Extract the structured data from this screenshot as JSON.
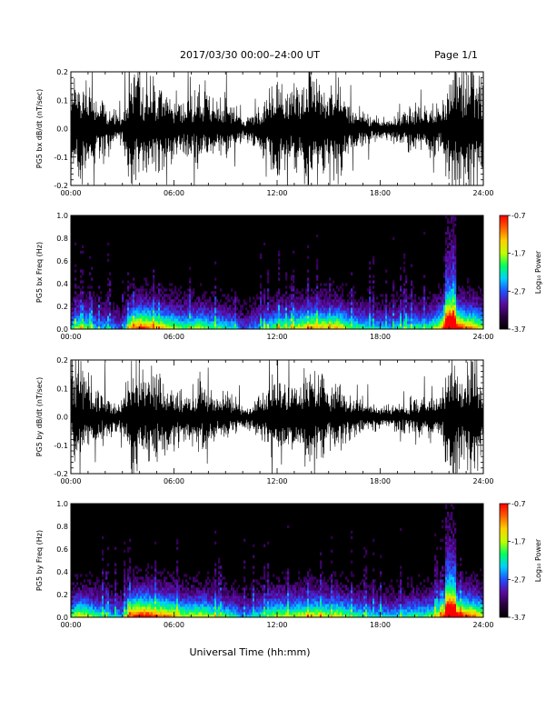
{
  "header": {
    "title": "2017/03/30  00:00–24:00 UT",
    "page": "Page 1/1"
  },
  "footer": {
    "xlabel": "Universal Time (hh:mm)"
  },
  "colors": {
    "trace": "#000000",
    "spectrogram_background": "#000000",
    "colormap": [
      "#000000",
      "#2a0040",
      "#5a0aa0",
      "#2050ff",
      "#00d0ff",
      "#00ff60",
      "#c0ff00",
      "#ffd000",
      "#ff6000",
      "#ff0000"
    ]
  },
  "chart_data": [
    {
      "id": "bx-waveform",
      "type": "line",
      "ylabel": "PG5 bx dB/dt (nT/sec)",
      "x_ticks": [
        "00:00",
        "06:00",
        "12:00",
        "18:00",
        "24:00"
      ],
      "xlim": [
        0,
        24
      ],
      "ylim": [
        -0.2,
        0.2
      ],
      "y_ticks": [
        "-0.2",
        "-0.1",
        "0.0",
        "0.1",
        "0.2"
      ],
      "y_tick_values": [
        -0.2,
        -0.1,
        0.0,
        0.1,
        0.2
      ],
      "envelope_hours": [
        0,
        0.5,
        1,
        1.5,
        2,
        2.5,
        3,
        3.5,
        4,
        4.5,
        5,
        5.5,
        6,
        6.5,
        7,
        7.5,
        8,
        8.5,
        9,
        9.5,
        10,
        10.5,
        11,
        11.5,
        12,
        12.5,
        13,
        13.5,
        14,
        14.5,
        15,
        15.5,
        16,
        16.5,
        17,
        17.5,
        18,
        18.5,
        19,
        19.5,
        20,
        20.5,
        21,
        21.5,
        22,
        22.5,
        23,
        23.5,
        24
      ],
      "envelope_amplitude": [
        0.15,
        0.2,
        0.14,
        0.1,
        0.09,
        0.06,
        0.05,
        0.2,
        0.16,
        0.18,
        0.15,
        0.14,
        0.12,
        0.1,
        0.12,
        0.13,
        0.11,
        0.09,
        0.1,
        0.08,
        0.04,
        0.05,
        0.09,
        0.12,
        0.2,
        0.12,
        0.15,
        0.17,
        0.2,
        0.18,
        0.12,
        0.2,
        0.1,
        0.08,
        0.06,
        0.05,
        0.04,
        0.04,
        0.05,
        0.06,
        0.08,
        0.07,
        0.09,
        0.08,
        0.2,
        0.2,
        0.2,
        0.2,
        0.15
      ]
    },
    {
      "id": "bx-spectrogram",
      "type": "heatmap",
      "ylabel": "PG5 bx Freq (Hz)",
      "x_ticks": [
        "00:00",
        "06:00",
        "12:00",
        "18:00",
        "24:00"
      ],
      "xlim": [
        0,
        24
      ],
      "ylim": [
        0.0,
        1.0
      ],
      "y_ticks": [
        "0.0",
        "0.2",
        "0.4",
        "0.6",
        "0.8",
        "1.0"
      ],
      "y_tick_values": [
        0.0,
        0.2,
        0.4,
        0.6,
        0.8,
        1.0
      ],
      "colorbar_label": "Log₁₀ Power",
      "colorbar_ticks": [
        "-0.7",
        "-1.7",
        "-2.7",
        "-3.7"
      ],
      "colorbar_values": [
        -0.7,
        -1.7,
        -2.7,
        -3.7
      ],
      "color_range": [
        -3.7,
        -0.7
      ],
      "activity_hours": [
        0,
        0.5,
        1,
        1.5,
        2,
        2.5,
        3,
        3.5,
        4,
        4.5,
        5,
        5.5,
        6,
        6.5,
        7,
        7.5,
        8,
        8.5,
        9,
        9.5,
        10,
        10.5,
        11,
        11.5,
        12,
        12.5,
        13,
        13.5,
        14,
        14.5,
        15,
        15.5,
        16,
        16.5,
        17,
        17.5,
        18,
        18.5,
        19,
        19.5,
        20,
        20.5,
        21,
        21.5,
        22,
        22.5,
        23,
        23.5,
        24
      ],
      "activity_level": [
        0.35,
        0.45,
        0.4,
        0.3,
        0.3,
        0.25,
        0.2,
        0.55,
        0.65,
        0.6,
        0.55,
        0.5,
        0.45,
        0.4,
        0.42,
        0.45,
        0.4,
        0.38,
        0.35,
        0.32,
        0.2,
        0.25,
        0.3,
        0.35,
        0.45,
        0.42,
        0.45,
        0.5,
        0.55,
        0.55,
        0.5,
        0.55,
        0.45,
        0.38,
        0.35,
        0.32,
        0.3,
        0.3,
        0.32,
        0.35,
        0.38,
        0.35,
        0.4,
        0.5,
        0.85,
        0.7,
        0.6,
        0.55,
        0.45
      ]
    },
    {
      "id": "by-waveform",
      "type": "line",
      "ylabel": "PG5 by dB/dt (nT/sec)",
      "x_ticks": [
        "00:00",
        "06:00",
        "12:00",
        "18:00",
        "24:00"
      ],
      "xlim": [
        0,
        24
      ],
      "ylim": [
        -0.2,
        0.2
      ],
      "y_ticks": [
        "-0.2",
        "-0.1",
        "0.0",
        "0.1",
        "0.2"
      ],
      "y_tick_values": [
        -0.2,
        -0.1,
        0.0,
        0.1,
        0.2
      ],
      "envelope_hours": [
        0,
        0.5,
        1,
        1.5,
        2,
        2.5,
        3,
        3.5,
        4,
        4.5,
        5,
        5.5,
        6,
        6.5,
        7,
        7.5,
        8,
        8.5,
        9,
        9.5,
        10,
        10.5,
        11,
        11.5,
        12,
        12.5,
        13,
        13.5,
        14,
        14.5,
        15,
        15.5,
        16,
        16.5,
        17,
        17.5,
        18,
        18.5,
        19,
        19.5,
        20,
        20.5,
        21,
        21.5,
        22,
        22.5,
        23,
        23.5,
        24
      ],
      "envelope_amplitude": [
        0.12,
        0.2,
        0.12,
        0.09,
        0.08,
        0.05,
        0.05,
        0.2,
        0.15,
        0.17,
        0.14,
        0.13,
        0.11,
        0.09,
        0.1,
        0.12,
        0.1,
        0.08,
        0.09,
        0.07,
        0.04,
        0.05,
        0.08,
        0.1,
        0.18,
        0.1,
        0.12,
        0.14,
        0.16,
        0.15,
        0.1,
        0.15,
        0.09,
        0.07,
        0.06,
        0.05,
        0.04,
        0.04,
        0.05,
        0.05,
        0.07,
        0.06,
        0.08,
        0.07,
        0.2,
        0.2,
        0.2,
        0.2,
        0.14
      ]
    },
    {
      "id": "by-spectrogram",
      "type": "heatmap",
      "ylabel": "PG5 by Freq (Hz)",
      "x_ticks": [
        "00:00",
        "06:00",
        "12:00",
        "18:00",
        "24:00"
      ],
      "xlim": [
        0,
        24
      ],
      "ylim": [
        0.0,
        1.0
      ],
      "y_ticks": [
        "0.0",
        "0.2",
        "0.4",
        "0.6",
        "0.8",
        "1.0"
      ],
      "y_tick_values": [
        0.0,
        0.2,
        0.4,
        0.6,
        0.8,
        1.0
      ],
      "colorbar_label": "Log₁₀ Power",
      "colorbar_ticks": [
        "-0.7",
        "-1.7",
        "-2.7",
        "-3.7"
      ],
      "colorbar_values": [
        -0.7,
        -1.7,
        -2.7,
        -3.7
      ],
      "color_range": [
        -3.7,
        -0.7
      ],
      "activity_hours": [
        0,
        0.5,
        1,
        1.5,
        2,
        2.5,
        3,
        3.5,
        4,
        4.5,
        5,
        5.5,
        6,
        6.5,
        7,
        7.5,
        8,
        8.5,
        9,
        9.5,
        10,
        10.5,
        11,
        11.5,
        12,
        12.5,
        13,
        13.5,
        14,
        14.5,
        15,
        15.5,
        16,
        16.5,
        17,
        17.5,
        18,
        18.5,
        19,
        19.5,
        20,
        20.5,
        21,
        21.5,
        22,
        22.5,
        23,
        23.5,
        24
      ],
      "activity_level": [
        0.4,
        0.5,
        0.45,
        0.38,
        0.35,
        0.3,
        0.28,
        0.6,
        0.7,
        0.68,
        0.62,
        0.6,
        0.55,
        0.45,
        0.45,
        0.48,
        0.45,
        0.4,
        0.38,
        0.35,
        0.25,
        0.3,
        0.35,
        0.4,
        0.48,
        0.45,
        0.45,
        0.48,
        0.5,
        0.5,
        0.45,
        0.5,
        0.42,
        0.38,
        0.35,
        0.32,
        0.3,
        0.3,
        0.32,
        0.35,
        0.38,
        0.36,
        0.42,
        0.5,
        0.85,
        0.72,
        0.62,
        0.58,
        0.48
      ]
    }
  ]
}
